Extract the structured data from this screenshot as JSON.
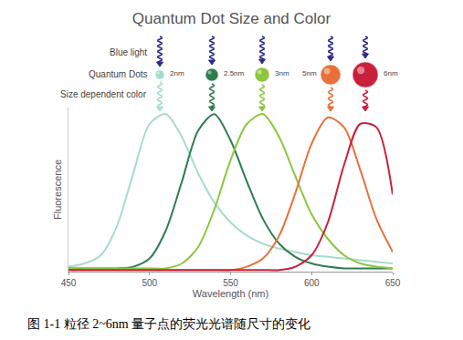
{
  "chart_data": {
    "type": "line",
    "title": "Quantum Dot Size and Color",
    "x_label": "Wavelength (nm)",
    "y_label": "Fluorescence",
    "caption": "图 1-1 粒径 2~6nm 量子点的荧光光谱随尺寸的变化",
    "annotations": [
      "Blue light",
      "Quantum Dots",
      "Size dependent color"
    ],
    "x": [
      450,
      460,
      470,
      480,
      490,
      500,
      510,
      520,
      530,
      540,
      550,
      560,
      570,
      580,
      590,
      600,
      610,
      620,
      630,
      640,
      650
    ],
    "series": [
      {
        "name": "2nm",
        "color": "#a6dccb",
        "values": [
          0.03,
          0.05,
          0.1,
          0.28,
          0.6,
          0.9,
          0.96,
          0.82,
          0.6,
          0.42,
          0.3,
          0.22,
          0.17,
          0.14,
          0.12,
          0.1,
          0.09,
          0.08,
          0.07,
          0.06,
          0.05
        ]
      },
      {
        "name": "2.5nm",
        "color": "#2e7d4f",
        "values": [
          0.02,
          0.02,
          0.02,
          0.02,
          0.03,
          0.08,
          0.25,
          0.55,
          0.86,
          0.96,
          0.8,
          0.55,
          0.32,
          0.17,
          0.09,
          0.05,
          0.03,
          0.02,
          0.02,
          0.02,
          0.02
        ]
      },
      {
        "name": "3nm",
        "color": "#8cc63f",
        "values": [
          0.02,
          0.02,
          0.02,
          0.02,
          0.02,
          0.02,
          0.02,
          0.05,
          0.15,
          0.38,
          0.68,
          0.9,
          0.96,
          0.82,
          0.58,
          0.35,
          0.2,
          0.1,
          0.05,
          0.03,
          0.02
        ]
      },
      {
        "name": "5nm",
        "color": "#e8703a",
        "values": [
          0.01,
          0.01,
          0.01,
          0.01,
          0.01,
          0.01,
          0.01,
          0.01,
          0.01,
          0.01,
          0.01,
          0.03,
          0.08,
          0.22,
          0.48,
          0.78,
          0.94,
          0.88,
          0.62,
          0.32,
          0.12
        ]
      },
      {
        "name": "6nm",
        "color": "#c8203a",
        "values": [
          0.01,
          0.01,
          0.01,
          0.01,
          0.01,
          0.01,
          0.01,
          0.01,
          0.01,
          0.01,
          0.01,
          0.01,
          0.01,
          0.01,
          0.03,
          0.1,
          0.3,
          0.65,
          0.9,
          0.88,
          0.47
        ]
      }
    ],
    "xlim": [
      450,
      650
    ],
    "xticks": [
      450,
      500,
      550,
      600,
      650
    ],
    "ylim": [
      0,
      1
    ],
    "tick_labels": "x",
    "grid": false
  }
}
